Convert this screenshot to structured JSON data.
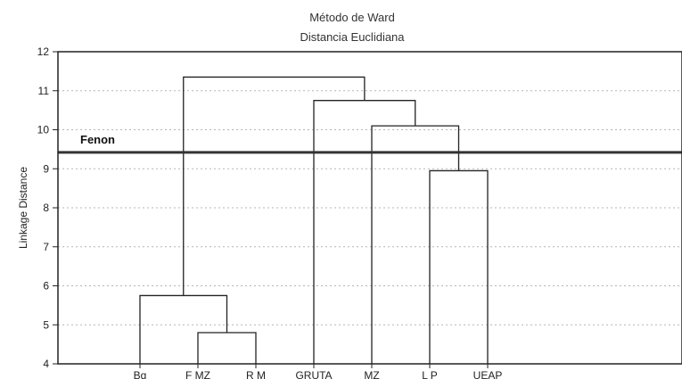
{
  "chart_data": {
    "type": "dendrogram",
    "title": "Método de Ward",
    "subtitle": "Distancia Euclidiana",
    "xlabel": "",
    "ylabel": "Linkage Distance",
    "ylim": [
      4,
      12
    ],
    "yticks": [
      4,
      5,
      6,
      7,
      8,
      9,
      10,
      11,
      12
    ],
    "grid": true,
    "leaves": [
      "Bg",
      "F MZ",
      "R M",
      "GRUTA",
      "MZ",
      "L P",
      "UEAP"
    ],
    "merges": [
      {
        "left": "F MZ",
        "right": "R M",
        "height": 4.8
      },
      {
        "left": "Bg",
        "right": "F MZ + R M",
        "height": 5.75
      },
      {
        "left": "L P",
        "right": "UEAP",
        "height": 8.95
      },
      {
        "left": "MZ",
        "right": "L P + UEAP",
        "height": 10.1
      },
      {
        "left": "GRUTA",
        "right": "MZ + L P + UEAP",
        "height": 10.75
      },
      {
        "left": "Bg + F MZ + R M",
        "right": "GRUTA + MZ + L P + UEAP",
        "height": 11.35
      }
    ],
    "reference_line": {
      "label": "Fenon",
      "value": 9.42
    }
  }
}
